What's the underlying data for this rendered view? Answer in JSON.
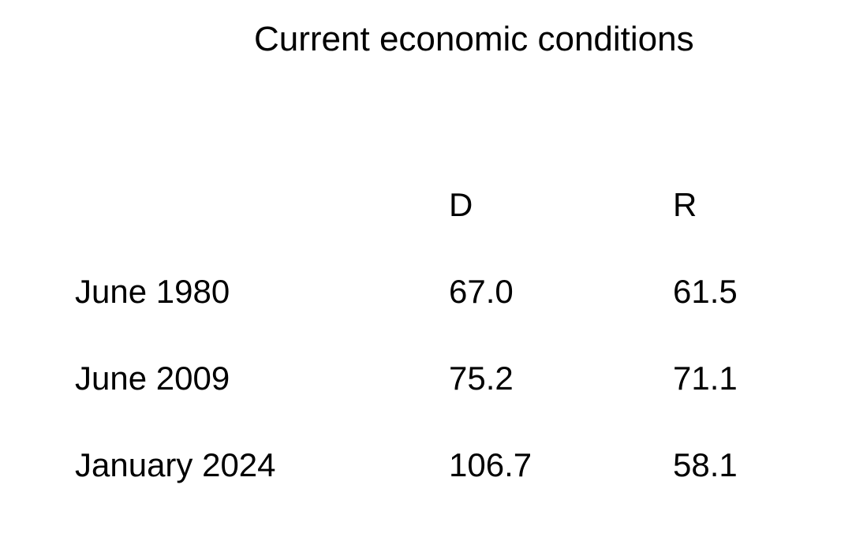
{
  "title": "Current economic conditions",
  "colors": {
    "background": "#ffffff",
    "text": "#000000"
  },
  "table": {
    "columns": [
      "D",
      "R"
    ],
    "rows": [
      {
        "label": "June 1980",
        "values": [
          "67.0",
          "61.5"
        ]
      },
      {
        "label": "June 2009",
        "values": [
          "75.2",
          "71.1"
        ]
      },
      {
        "label": "January 2024",
        "values": [
          "106.7",
          "58.1"
        ]
      }
    ]
  },
  "chart_data": {
    "type": "table",
    "title": "Current economic conditions",
    "columns": [
      "D",
      "R"
    ],
    "categories": [
      "June 1980",
      "June 2009",
      "January 2024"
    ],
    "series": [
      {
        "name": "D",
        "values": [
          67.0,
          75.2,
          106.7
        ]
      },
      {
        "name": "R",
        "values": [
          61.5,
          71.1,
          58.1
        ]
      }
    ],
    "layout": {
      "grid": false,
      "borders": false,
      "value_alignment": "left"
    }
  }
}
